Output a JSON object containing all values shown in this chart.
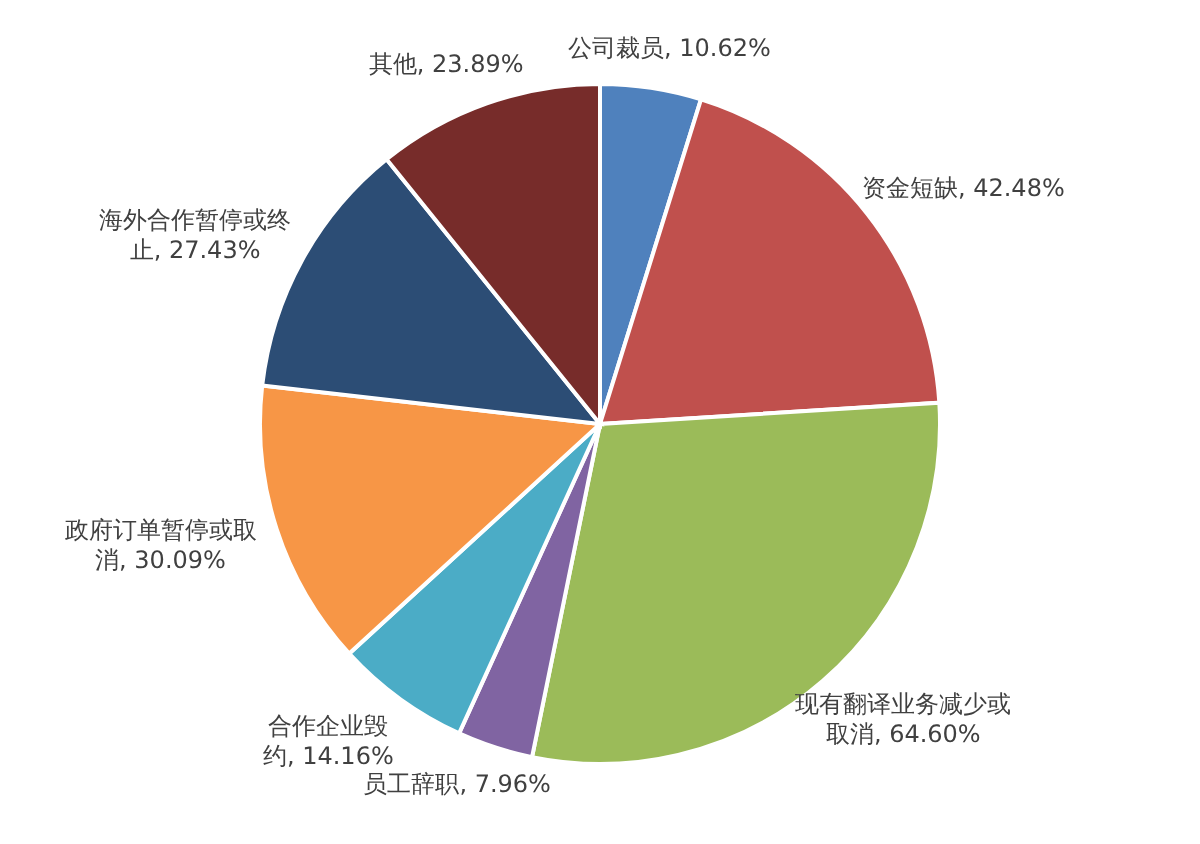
{
  "chart_data": {
    "type": "pie",
    "categories": [
      "公司裁员",
      "资金短缺",
      "现有翻译业务减少或取消",
      "员工辞职",
      "合作企业毁约",
      "政府订单暂停或取消",
      "海外合作暂停或终止",
      "其他"
    ],
    "values": [
      10.62,
      42.48,
      64.6,
      7.96,
      14.16,
      30.09,
      27.43,
      23.89
    ],
    "value_labels": [
      ", 10.62%",
      ", 42.48%",
      ", 64.60%",
      ", 7.96%",
      ", 14.16%",
      ", 30.09%",
      ", 27.43%",
      ", 23.89%"
    ],
    "colors": [
      "#4f81bd",
      "#c0504d",
      "#9bbb59",
      "#8064a2",
      "#4bacc6",
      "#f79646",
      "#2c4d75",
      "#772c2a"
    ]
  }
}
